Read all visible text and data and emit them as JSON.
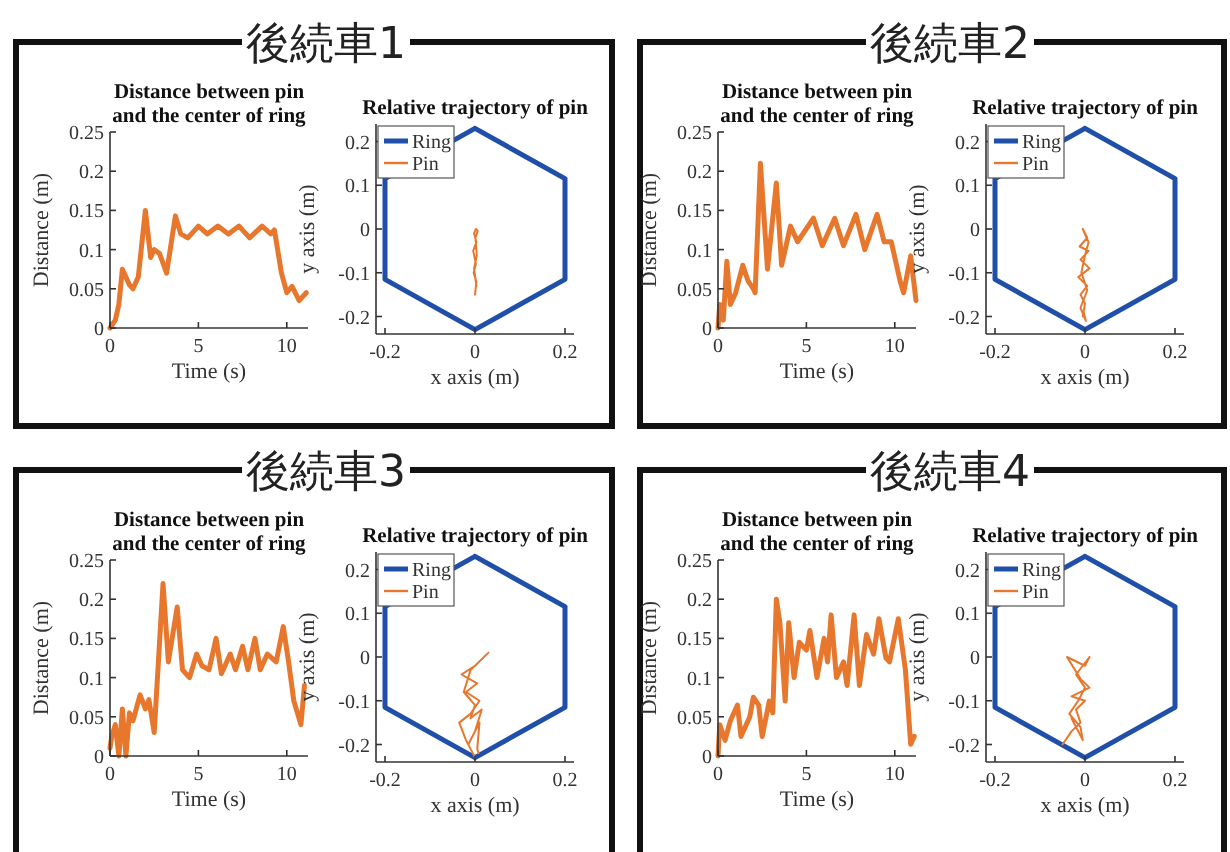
{
  "chart_data": [
    {
      "type": "line",
      "subtitle": "後続車1",
      "title": "Distance between pin\nand the center of ring",
      "xlabel": "Time (s)",
      "ylabel": "Distance (m)",
      "xlim": [
        0,
        11.2
      ],
      "ylim": [
        0,
        0.25
      ],
      "xticks": [
        0,
        5,
        10
      ],
      "yticks": [
        0,
        0.05,
        0.1,
        0.15,
        0.2,
        0.25
      ],
      "x": [
        0,
        0.3,
        0.5,
        0.7,
        1.1,
        1.3,
        1.6,
        2.0,
        2.3,
        2.5,
        2.8,
        3.2,
        3.7,
        4.0,
        4.4,
        5.0,
        5.5,
        6.1,
        6.7,
        7.3,
        7.9,
        8.6,
        9.1,
        9.3,
        9.7,
        10.0,
        10.3,
        10.7,
        11.1
      ],
      "series": [
        {
          "color": "#e8772e",
          "values": [
            0,
            0.01,
            0.03,
            0.075,
            0.055,
            0.05,
            0.065,
            0.15,
            0.09,
            0.1,
            0.095,
            0.07,
            0.143,
            0.12,
            0.115,
            0.13,
            0.12,
            0.13,
            0.12,
            0.13,
            0.115,
            0.13,
            0.12,
            0.125,
            0.07,
            0.045,
            0.053,
            0.035,
            0.045
          ]
        }
      ]
    },
    {
      "type": "line",
      "title": "Relative trajectory of pin",
      "xlabel": "x axis (m)",
      "ylabel": "y axis (m)",
      "xlim": [
        -0.22,
        0.22
      ],
      "ylim": [
        -0.24,
        0.24
      ],
      "xticks": [
        -0.2,
        0,
        0.2
      ],
      "yticks": [
        -0.2,
        -0.1,
        0,
        0.1,
        0.2
      ],
      "legend": "top left",
      "series": [
        {
          "name": "Ring",
          "color": "#1f4fa8",
          "x": [
            0,
            0.2,
            0.2,
            0,
            -0.2,
            -0.2,
            0,
            0.2
          ],
          "values": [
            0.23,
            0.115,
            -0.115,
            -0.23,
            -0.115,
            0.115,
            0.23,
            0.115
          ]
        },
        {
          "name": "Pin",
          "color": "#e8772e",
          "x": [
            0,
            0.003,
            -0.003,
            0.002,
            -0.004,
            0.003,
            -0.002,
            0.002,
            0.006,
            0.001,
            0.004,
            -0.002,
            0.003
          ],
          "values": [
            -0.15,
            -0.12,
            -0.1,
            -0.08,
            -0.05,
            -0.03,
            -0.01,
            0.0,
            -0.005,
            -0.02,
            -0.06,
            -0.09,
            -0.13
          ]
        }
      ]
    },
    {
      "type": "line",
      "subtitle": "後続車2",
      "title": "Distance between pin\nand the center of ring",
      "xlabel": "Time (s)",
      "ylabel": "Distance (m)",
      "xlim": [
        0,
        11.2
      ],
      "ylim": [
        0,
        0.25
      ],
      "xticks": [
        0,
        5,
        10
      ],
      "yticks": [
        0,
        0.05,
        0.1,
        0.15,
        0.2,
        0.25
      ],
      "x": [
        0,
        0.1,
        0.3,
        0.5,
        0.7,
        1.0,
        1.4,
        1.7,
        2.0,
        2.1,
        2.4,
        2.8,
        3.3,
        3.6,
        4.1,
        4.5,
        5.4,
        5.9,
        6.6,
        7.1,
        7.8,
        8.3,
        9.0,
        9.4,
        9.8,
        10.3,
        10.5,
        10.9,
        11.2
      ],
      "series": [
        {
          "color": "#e8772e",
          "values": [
            0,
            0.03,
            0.01,
            0.085,
            0.03,
            0.045,
            0.08,
            0.06,
            0.05,
            0.045,
            0.21,
            0.075,
            0.185,
            0.08,
            0.13,
            0.11,
            0.14,
            0.105,
            0.14,
            0.105,
            0.145,
            0.1,
            0.145,
            0.11,
            0.11,
            0.06,
            0.045,
            0.092,
            0.035
          ]
        }
      ]
    },
    {
      "type": "line",
      "title": "Relative trajectory of pin",
      "xlabel": "x axis (m)",
      "ylabel": "y axis (m)",
      "xlim": [
        -0.22,
        0.22
      ],
      "ylim": [
        -0.24,
        0.24
      ],
      "xticks": [
        -0.2,
        0,
        0.2
      ],
      "yticks": [
        -0.2,
        -0.1,
        0,
        0.1,
        0.2
      ],
      "legend": "top left",
      "series": [
        {
          "name": "Ring",
          "color": "#1f4fa8",
          "x": [
            0,
            0.2,
            0.2,
            0,
            -0.2,
            -0.2,
            0,
            0.2
          ],
          "values": [
            0.23,
            0.115,
            -0.115,
            -0.23,
            -0.115,
            0.115,
            0.23,
            0.115
          ]
        },
        {
          "name": "Pin",
          "color": "#e8772e",
          "x": [
            -0.005,
            0.0,
            -0.01,
            0.005,
            -0.015,
            0.01,
            -0.01,
            0.008,
            -0.012,
            0.005,
            -0.005,
            0.008,
            0.0,
            -0.008,
            0.005,
            -0.01,
            0.002,
            -0.003
          ],
          "values": [
            -0.2,
            -0.17,
            -0.15,
            -0.13,
            -0.11,
            -0.09,
            -0.07,
            -0.05,
            -0.04,
            -0.02,
            0.0,
            -0.03,
            -0.06,
            -0.1,
            -0.14,
            -0.18,
            -0.21,
            -0.19
          ]
        }
      ]
    },
    {
      "type": "line",
      "subtitle": "後続車3",
      "title": "Distance between pin\nand the center of ring",
      "xlabel": "Time (s)",
      "ylabel": "Distance (m)",
      "xlim": [
        0,
        11.2
      ],
      "ylim": [
        0,
        0.25
      ],
      "xticks": [
        0,
        5,
        10
      ],
      "yticks": [
        0,
        0.05,
        0.1,
        0.15,
        0.2,
        0.25
      ],
      "x": [
        0,
        0.1,
        0.3,
        0.5,
        0.7,
        0.9,
        1.1,
        1.3,
        1.7,
        2.0,
        2.2,
        2.5,
        3.0,
        3.3,
        3.8,
        4.1,
        4.5,
        4.9,
        5.2,
        5.6,
        6.0,
        6.3,
        6.8,
        7.1,
        7.5,
        7.8,
        8.2,
        8.5,
        8.9,
        9.4,
        9.8,
        10.1,
        10.4,
        10.8,
        11.0
      ],
      "series": [
        {
          "color": "#e8772e",
          "values": [
            0.01,
            0.025,
            0.04,
            0.0,
            0.06,
            0.0,
            0.055,
            0.045,
            0.078,
            0.06,
            0.072,
            0.03,
            0.22,
            0.12,
            0.19,
            0.11,
            0.1,
            0.13,
            0.115,
            0.11,
            0.15,
            0.105,
            0.13,
            0.11,
            0.14,
            0.11,
            0.15,
            0.11,
            0.13,
            0.12,
            0.165,
            0.12,
            0.07,
            0.04,
            0.09
          ]
        }
      ]
    },
    {
      "type": "line",
      "title": "Relative trajectory of pin",
      "xlabel": "x axis (m)",
      "ylabel": "y axis (m)",
      "xlim": [
        -0.22,
        0.22
      ],
      "ylim": [
        -0.24,
        0.24
      ],
      "xticks": [
        -0.2,
        0,
        0.2
      ],
      "yticks": [
        -0.2,
        -0.1,
        0,
        0.1,
        0.2
      ],
      "legend": "top left",
      "series": [
        {
          "name": "Ring",
          "color": "#1f4fa8",
          "x": [
            0,
            0.2,
            0.2,
            0,
            -0.2,
            -0.2,
            0,
            0.2
          ],
          "values": [
            0.23,
            0.115,
            -0.115,
            -0.23,
            -0.115,
            0.115,
            0.23,
            0.115
          ]
        },
        {
          "name": "Pin",
          "color": "#e8772e",
          "x": [
            0.0,
            -0.02,
            -0.035,
            -0.01,
            0.01,
            -0.02,
            0.005,
            -0.03,
            0.0,
            0.03,
            -0.01,
            -0.025,
            0.0,
            -0.01,
            0.015,
            0.0,
            -0.015,
            0.01,
            0.005,
            0.008
          ],
          "values": [
            -0.23,
            -0.19,
            -0.15,
            -0.13,
            -0.1,
            -0.08,
            -0.06,
            -0.04,
            -0.02,
            0.01,
            -0.03,
            -0.08,
            -0.11,
            -0.14,
            -0.12,
            -0.17,
            -0.2,
            -0.15,
            -0.21,
            -0.22
          ]
        }
      ]
    },
    {
      "type": "line",
      "subtitle": "後続車4",
      "title": "Distance between pin\nand the center of ring",
      "xlabel": "Time (s)",
      "ylabel": "Distance (m)",
      "xlim": [
        0,
        11.2
      ],
      "ylim": [
        0,
        0.25
      ],
      "xticks": [
        0,
        5,
        10
      ],
      "yticks": [
        0,
        0.05,
        0.1,
        0.15,
        0.2,
        0.25
      ],
      "x": [
        0,
        0.1,
        0.4,
        0.7,
        1.1,
        1.3,
        1.8,
        2.0,
        2.3,
        2.5,
        2.9,
        3.1,
        3.3,
        3.5,
        3.8,
        4.0,
        4.3,
        4.6,
        5.0,
        5.2,
        5.6,
        6.0,
        6.2,
        6.4,
        6.7,
        7.1,
        7.3,
        7.7,
        8.0,
        8.4,
        8.8,
        9.1,
        9.5,
        9.7,
        10.2,
        10.6,
        10.9,
        11.1
      ],
      "series": [
        {
          "color": "#e8772e",
          "values": [
            0,
            0.04,
            0.02,
            0.045,
            0.065,
            0.025,
            0.05,
            0.075,
            0.065,
            0.025,
            0.07,
            0.055,
            0.2,
            0.17,
            0.07,
            0.17,
            0.1,
            0.145,
            0.135,
            0.16,
            0.1,
            0.15,
            0.12,
            0.18,
            0.1,
            0.12,
            0.09,
            0.18,
            0.09,
            0.155,
            0.13,
            0.175,
            0.125,
            0.12,
            0.175,
            0.11,
            0.015,
            0.025
          ]
        }
      ]
    },
    {
      "type": "line",
      "title": "Relative trajectory of pin",
      "xlabel": "x axis (m)",
      "ylabel": "y axis (m)",
      "xlim": [
        -0.22,
        0.22
      ],
      "ylim": [
        -0.24,
        0.24
      ],
      "xticks": [
        -0.2,
        0,
        0.2
      ],
      "yticks": [
        -0.2,
        -0.1,
        0,
        0.1,
        0.2
      ],
      "legend": "top left",
      "series": [
        {
          "name": "Ring",
          "color": "#1f4fa8",
          "x": [
            0,
            0.2,
            0.2,
            0,
            -0.2,
            -0.2,
            0,
            0.2
          ],
          "values": [
            0.23,
            0.115,
            -0.115,
            -0.23,
            -0.115,
            0.115,
            0.23,
            0.115
          ]
        },
        {
          "name": "Pin",
          "color": "#e8772e",
          "x": [
            -0.05,
            -0.03,
            -0.01,
            -0.02,
            0.0,
            -0.03,
            0.01,
            -0.01,
            -0.04,
            0.0,
            0.01,
            -0.02,
            0.0,
            -0.015,
            -0.035,
            -0.01,
            -0.005,
            -0.03
          ],
          "values": [
            -0.2,
            -0.17,
            -0.15,
            -0.12,
            -0.1,
            -0.09,
            -0.07,
            -0.05,
            0.0,
            -0.02,
            0.0,
            -0.04,
            -0.07,
            -0.1,
            -0.13,
            -0.16,
            -0.19,
            -0.14
          ]
        }
      ]
    }
  ]
}
